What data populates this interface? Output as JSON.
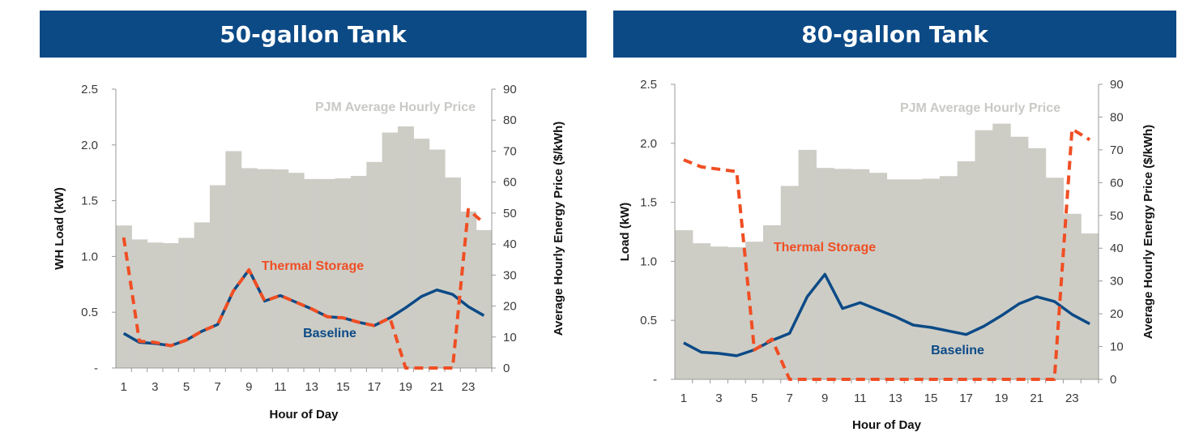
{
  "panels": [
    {
      "title": "50-gallon Tank"
    },
    {
      "title": "80-gallon Tank"
    }
  ],
  "colors": {
    "banner": "#0c4a86",
    "price_bars": "#cdcdc6",
    "baseline": "#0c4a86",
    "thermal_storage": "#f04e23"
  },
  "chart_data": [
    {
      "type": "bar+line",
      "title": "50-gallon Tank",
      "xlabel": "Hour of Day",
      "ylabel_left": "WH Load (kW)",
      "ylabel_right": "Average Hourly Energy Price ($/kWh)",
      "x": [
        1,
        2,
        3,
        4,
        5,
        6,
        7,
        8,
        9,
        10,
        11,
        12,
        13,
        14,
        15,
        16,
        17,
        18,
        19,
        20,
        21,
        22,
        23,
        24
      ],
      "xticks": [
        "1",
        "3",
        "5",
        "7",
        "9",
        "11",
        "13",
        "15",
        "17",
        "19",
        "21",
        "23"
      ],
      "yticks_left": [
        "-",
        "0.5",
        "1.0",
        "1.5",
        "2.0",
        "2.5"
      ],
      "yticks_right": [
        "0",
        "10",
        "20",
        "30",
        "40",
        "50",
        "60",
        "70",
        "80",
        "90"
      ],
      "ylim_left": [
        0,
        2.5
      ],
      "ylim_right": [
        0,
        90
      ],
      "grid": false,
      "price_series": {
        "name": "PJM Average Hourly Price",
        "values": [
          46,
          41.5,
          40.5,
          40.3,
          42,
          47,
          59,
          70,
          64.5,
          64.2,
          64.1,
          63,
          61,
          61,
          61.2,
          62,
          66.5,
          76,
          78,
          74,
          70.5,
          61.5,
          50.5,
          44.5
        ]
      },
      "series": [
        {
          "name": "Baseline",
          "style": "solid",
          "values": [
            0.31,
            0.23,
            0.22,
            0.2,
            0.25,
            0.33,
            0.39,
            0.69,
            0.88,
            0.6,
            0.65,
            0.59,
            0.53,
            0.46,
            0.45,
            0.41,
            0.38,
            0.45,
            0.54,
            0.64,
            0.7,
            0.66,
            0.55,
            0.47
          ]
        },
        {
          "name": "Thermal Storage",
          "style": "dashed",
          "values": [
            1.17,
            0.24,
            0.23,
            0.2,
            0.25,
            0.33,
            0.39,
            0.69,
            0.88,
            0.6,
            0.65,
            0.59,
            0.53,
            0.46,
            0.45,
            0.41,
            0.38,
            0.45,
            0.0,
            0.0,
            0.0,
            0.0,
            1.42,
            1.3
          ]
        }
      ]
    },
    {
      "type": "bar+line",
      "title": "80-gallon Tank",
      "xlabel": "Hour of Day",
      "ylabel_left": "Load (kW)",
      "ylabel_right": "Average Hourly Energy Price ($/kWh)",
      "x": [
        1,
        2,
        3,
        4,
        5,
        6,
        7,
        8,
        9,
        10,
        11,
        12,
        13,
        14,
        15,
        16,
        17,
        18,
        19,
        20,
        21,
        22,
        23,
        24
      ],
      "xticks": [
        "1",
        "3",
        "5",
        "7",
        "9",
        "11",
        "13",
        "15",
        "17",
        "19",
        "21",
        "23"
      ],
      "yticks_left": [
        "-",
        "0.5",
        "1.0",
        "1.5",
        "2.0",
        "2.5"
      ],
      "yticks_right": [
        "0",
        "10",
        "20",
        "30",
        "40",
        "50",
        "60",
        "70",
        "80",
        "90"
      ],
      "ylim_left": [
        0,
        2.5
      ],
      "ylim_right": [
        0,
        90
      ],
      "grid": false,
      "price_series": {
        "name": "PJM Average Hourly Price",
        "values": [
          45.5,
          41.5,
          40.5,
          40.3,
          42,
          47,
          59,
          70,
          64.5,
          64.2,
          64.1,
          63,
          61,
          61,
          61.2,
          62,
          66.5,
          76,
          78,
          74,
          70.5,
          61.5,
          50.5,
          44.5
        ]
      },
      "series": [
        {
          "name": "Baseline",
          "style": "solid",
          "values": [
            0.31,
            0.23,
            0.22,
            0.2,
            0.25,
            0.33,
            0.39,
            0.7,
            0.89,
            0.6,
            0.65,
            0.59,
            0.53,
            0.46,
            0.44,
            0.41,
            0.38,
            0.45,
            0.54,
            0.64,
            0.7,
            0.66,
            0.55,
            0.47
          ]
        },
        {
          "name": "Thermal Storage",
          "style": "dashed",
          "values": [
            1.86,
            1.8,
            1.78,
            1.76,
            0.25,
            0.34,
            0.0,
            0.0,
            0.0,
            0.0,
            0.0,
            0.0,
            0.0,
            0.0,
            0.0,
            0.0,
            0.0,
            0.0,
            0.0,
            0.0,
            0.0,
            0.0,
            2.12,
            2.03
          ]
        }
      ]
    }
  ]
}
